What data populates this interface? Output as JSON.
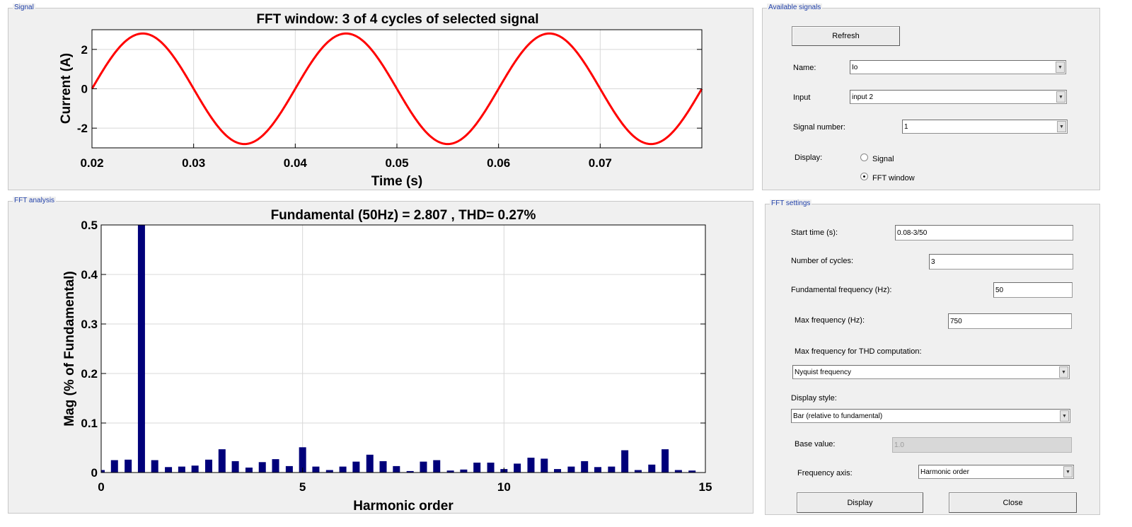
{
  "signal_panel": {
    "title": "Signal",
    "chart_data": {
      "type": "line",
      "title": "FFT window: 3 of 4 cycles of selected signal",
      "xlabel": "Time (s)",
      "ylabel": "Current (A)",
      "xlim": [
        0.02,
        0.08
      ],
      "ylim": [
        -3,
        3
      ],
      "xticks": [
        "0.02",
        "0.03",
        "0.04",
        "0.05",
        "0.06",
        "0.07"
      ],
      "yticks": [
        "2",
        "0",
        "-2"
      ],
      "grid": true,
      "series": [
        {
          "amplitude": 2.807,
          "frequency_hz": 50,
          "color": "#ff0000"
        }
      ]
    }
  },
  "fft_panel": {
    "title": "FFT analysis",
    "chart_data": {
      "type": "bar",
      "title": "Fundamental (50Hz) = 2.807 , THD= 0.27%",
      "xlabel": "Harmonic order",
      "ylabel": "Mag (% of Fundamental)",
      "xlim": [
        0,
        15
      ],
      "ylim": [
        0,
        0.5
      ],
      "xticks": [
        "0",
        "5",
        "10",
        "15"
      ],
      "yticks": [
        "0.5",
        "0.4",
        "0.3",
        "0.2",
        "0.1",
        "0"
      ],
      "grid": true,
      "bar_color": "#00007a",
      "x": [
        0,
        0.33,
        0.67,
        1,
        1.33,
        1.67,
        2,
        2.33,
        2.67,
        3,
        3.33,
        3.67,
        4,
        4.33,
        4.67,
        5,
        5.33,
        5.67,
        6,
        6.33,
        6.67,
        7,
        7.33,
        7.67,
        8,
        8.33,
        8.67,
        9,
        9.33,
        9.67,
        10,
        10.33,
        10.67,
        11,
        11.33,
        11.67,
        12,
        12.33,
        12.67,
        13,
        13.33,
        13.67,
        14,
        14.33,
        14.67
      ],
      "values": [
        0.005,
        0.025,
        0.026,
        0.5,
        0.025,
        0.011,
        0.012,
        0.014,
        0.026,
        0.047,
        0.023,
        0.01,
        0.021,
        0.027,
        0.013,
        0.051,
        0.012,
        0.005,
        0.012,
        0.022,
        0.036,
        0.023,
        0.013,
        0.003,
        0.022,
        0.025,
        0.004,
        0.006,
        0.02,
        0.02,
        0.007,
        0.018,
        0.03,
        0.028,
        0.007,
        0.012,
        0.023,
        0.011,
        0.012,
        0.045,
        0.005,
        0.016,
        0.047,
        0.005,
        0.004
      ]
    }
  },
  "available_signals": {
    "title": "Available signals",
    "refresh_label": "Refresh",
    "name_label": "Name:",
    "name_value": "Io",
    "input_label": "Input",
    "input_value": "input 2",
    "signal_number_label": "Signal number:",
    "signal_number_value": "1",
    "display_label": "Display:",
    "display_option_signal": "Signal",
    "display_option_fft": "FFT window",
    "display_selected": "FFT window"
  },
  "fft_settings": {
    "title": "FFT settings",
    "start_time_label": "Start time (s):",
    "start_time_value": "0.08-3/50",
    "cycles_label": "Number of cycles:",
    "cycles_value": "3",
    "fund_freq_label": "Fundamental frequency (Hz):",
    "fund_freq_value": "50",
    "max_freq_label": "Max frequency (Hz):",
    "max_freq_value": "750",
    "thd_label": "Max frequency for THD computation:",
    "thd_value": "Nyquist frequency",
    "display_style_label": "Display style:",
    "display_style_value": "Bar (relative to fundamental)",
    "base_value_label": "Base value:",
    "base_value_value": "1.0",
    "freq_axis_label": "Frequency axis:",
    "freq_axis_value": "Harmonic order",
    "display_button": "Display",
    "close_button": "Close"
  }
}
